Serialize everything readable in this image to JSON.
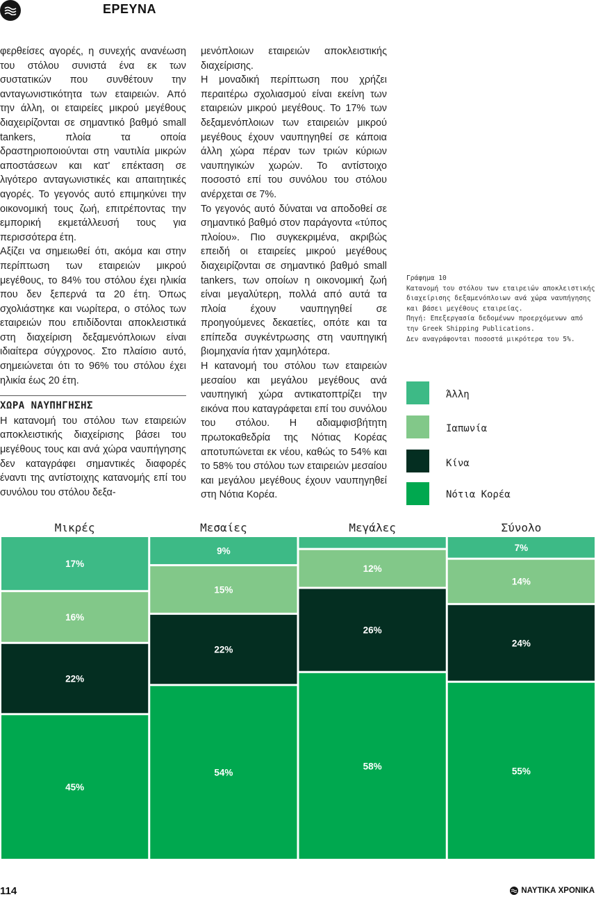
{
  "header": {
    "section": "ΕΡΕΥΝΑ"
  },
  "column1": {
    "p1": "φερθείσες αγορές, η συνεχής ανανέωση του στόλου συνιστά ένα εκ των συστατικών που συνθέτουν την ανταγωνιστικότητα των εταιρειών. Από την άλλη, οι εταιρείες μικρού μεγέθους διαχειρίζονται σε σημαντικό βαθμό small tankers, πλοία τα οποία δραστηριοποιούνται στη ναυτιλία μικρών αποστάσεων και κατ' επέκταση σε λιγότερο ανταγωνιστικές και απαιτητικές αγορές. Το γεγονός αυτό επιμηκύνει την οικονομική τους ζωή, επιτρέποντας την εμπορική εκμετάλλευσή τους για περισσότερα έτη.",
    "p2": "Αξίζει να σημειωθεί ότι, ακόμα και στην περίπτωση των εταιρειών μικρού μεγέθους, το 84% του στόλου έχει ηλικία που δεν ξεπερνά τα 20 έτη. Όπως σχολιάστηκε και νωρίτερα, ο στόλος των εταιρειών που επιδίδονται αποκλειστικά στη διαχείριση δεξαμενόπλοιων είναι ιδιαίτερα σύγχρονος. Στο πλαίσιο αυτό, σημειώνεται ότι το 96% του στόλου έχει ηλικία έως 20 έτη.",
    "subhead": "ΧΩΡΑ ΝΑΥΠΗΓΗΣΗΣ",
    "p3": "Η κατανομή του στόλου των εταιρειών αποκλειστικής διαχείρισης βάσει του μεγέθους τους και ανά χώρα ναυπήγησης δεν καταγράφει σημαντικές διαφορές έναντι της αντίστοιχης κατανομής επί του συνόλου του στόλου δεξα-"
  },
  "column2": {
    "p1": "μενόπλοιων εταιρειών αποκλειστικής διαχείρισης.",
    "p2": "Η μοναδική περίπτωση που χρήζει περαιτέρω σχολιασμού είναι εκείνη των εταιρειών μικρού μεγέθους. Το 17% των δεξαμενόπλοιων των εταιρειών μικρού μεγέθους έχουν ναυπηγηθεί σε κάποια άλλη χώρα πέραν των τριών κύριων ναυπηγικών χωρών. Το αντίστοιχο ποσοστό επί του συνόλου του στόλου ανέρχεται σε 7%.",
    "p3": "Το γεγονός αυτό δύναται να αποδοθεί σε σημαντικό βαθμό στον παράγοντα «τύπος πλοίου». Πιο συγκεκριμένα, ακριβώς επειδή οι εταιρείες μικρού μεγέθους διαχειρίζονται σε σημαντικό βαθμό small tankers, των οποίων η οικονομική ζωή είναι μεγαλύτερη, πολλά από αυτά τα πλοία έχουν ναυπηγηθεί σε προηγούμενες δεκαετίες, οπότε και τα επίπεδα συγκέντρωσης στη ναυπηγική βιομηχανία ήταν χαμηλότερα.",
    "p4": "Η κατανομή του στόλου των εταιρειών μεσαίου και μεγάλου μεγέθους ανά ναυπηγική χώρα αντικατοπτρίζει την εικόνα που καταγράφεται επί του συνόλου του στόλου. Η αδιαμφισβήτητη πρωτοκαθεδρία της Νότιας Κορέας αποτυπώνεται εκ νέου, καθώς το 54% και το 58% του στόλου των εταιρειών μεσαίου και μεγάλου μεγέθους έχουν ναυπηγηθεί στη Νότια Κορέα."
  },
  "caption": {
    "line1": "Γράφημα 10",
    "line2": "Κατανομή του στόλου των εταιρειών αποκλειστικής διαχείρισης δεξαμενόπλοιων ανά χώρα ναυπήγησης και βάσει μεγέθους εταιρείας.",
    "line3": "Πηγή: Επεξεργασία δεδομένων προερχόμενων από την Greek Shipping Publications.",
    "line4": "Δεν αναγράφονται ποσοστά μικρότερα του 5%."
  },
  "legend": [
    {
      "label": "Άλλη",
      "color": "#3dba86"
    },
    {
      "label": "Ιαπωνία",
      "color": "#82c889"
    },
    {
      "label": "Κίνα",
      "color": "#042e21"
    },
    {
      "label": "Νότια Κορέα",
      "color": "#00a84f"
    }
  ],
  "chart_data": {
    "type": "bar",
    "stacked": true,
    "stack_order_top_to_bottom": [
      "Άλλη",
      "Ιαπωνία",
      "Κίνα",
      "Νότια Κορέα"
    ],
    "categories": [
      "Μικρές",
      "Μεσαίες",
      "Μεγάλες",
      "Σύνολο"
    ],
    "ylim": [
      0,
      100
    ],
    "series": [
      {
        "name": "Άλλη",
        "color": "#3dba86",
        "values": [
          17,
          9,
          4,
          7
        ],
        "labels": [
          "17%",
          "9%",
          "",
          "7%"
        ]
      },
      {
        "name": "Ιαπωνία",
        "color": "#82c889",
        "values": [
          16,
          15,
          12,
          14
        ],
        "labels": [
          "16%",
          "15%",
          "12%",
          "14%"
        ]
      },
      {
        "name": "Κίνα",
        "color": "#042e21",
        "values": [
          22,
          22,
          26,
          24
        ],
        "labels": [
          "22%",
          "22%",
          "26%",
          "24%"
        ]
      },
      {
        "name": "Νότια Κορέα",
        "color": "#00a84f",
        "values": [
          45,
          54,
          58,
          55
        ],
        "labels": [
          "45%",
          "54%",
          "58%",
          "55%"
        ]
      }
    ]
  },
  "footer": {
    "page_number": "114",
    "brand": "ΝΑΥΤΙΚΑ ΧΡΟΝΙΚΑ"
  }
}
